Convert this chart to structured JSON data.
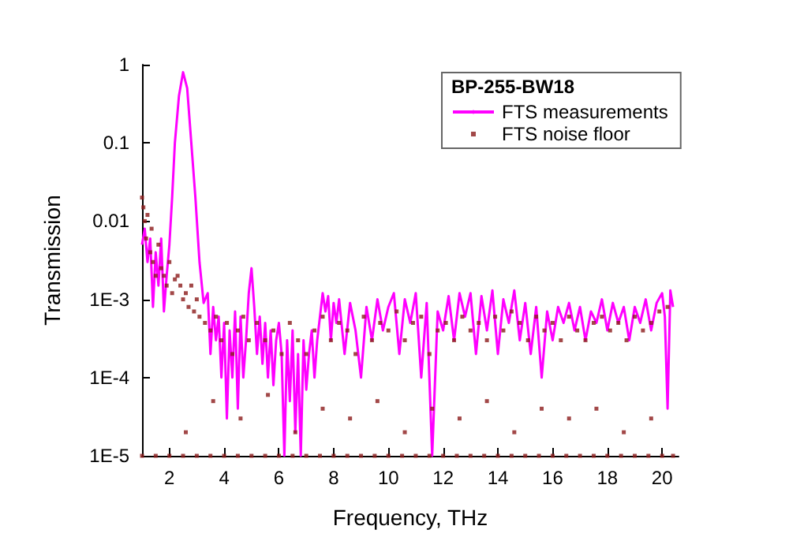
{
  "chart_data": {
    "type": "line",
    "xlabel": "Frequency, THz",
    "ylabel": "Transmission",
    "legend_title": "BP-255-BW18",
    "legend": "top right",
    "grid": false,
    "log": "y",
    "xlim": [
      1,
      20.6
    ],
    "xticks": [
      2,
      4,
      6,
      8,
      10,
      12,
      14,
      16,
      18,
      20
    ],
    "ylim": [
      1e-05,
      1
    ],
    "yticks": [
      1,
      0.1,
      0.01,
      {
        "value": 0.001,
        "label": "1E-3"
      },
      {
        "value": 0.0001,
        "label": "1E-4"
      },
      {
        "value": 1e-05,
        "label": "1E-5"
      }
    ],
    "series": [
      {
        "name": "FTS measurements",
        "color": "#ff00ff",
        "x": [
          1.0,
          1.1,
          1.2,
          1.3,
          1.4,
          1.5,
          1.6,
          1.7,
          1.8,
          1.9,
          2.0,
          2.1,
          2.2,
          2.35,
          2.5,
          2.65,
          2.8,
          2.95,
          3.1,
          3.25,
          3.4,
          3.5,
          3.6,
          3.7,
          3.8,
          3.9,
          4.0,
          4.1,
          4.2,
          4.3,
          4.4,
          4.5,
          4.6,
          4.7,
          4.8,
          4.9,
          5.0,
          5.1,
          5.2,
          5.3,
          5.4,
          5.5,
          5.6,
          5.7,
          5.8,
          5.9,
          6.0,
          6.1,
          6.2,
          6.3,
          6.4,
          6.5,
          6.6,
          6.7,
          6.8,
          6.9,
          7.0,
          7.1,
          7.2,
          7.3,
          7.4,
          7.5,
          7.6,
          7.7,
          7.8,
          7.9,
          8.0,
          8.1,
          8.2,
          8.4,
          8.6,
          8.8,
          9.0,
          9.2,
          9.4,
          9.6,
          9.8,
          10.0,
          10.2,
          10.4,
          10.6,
          10.8,
          11.0,
          11.2,
          11.4,
          11.6,
          11.8,
          12.0,
          12.2,
          12.4,
          12.6,
          12.8,
          13.0,
          13.2,
          13.4,
          13.6,
          13.8,
          14.0,
          14.2,
          14.4,
          14.6,
          14.8,
          15.0,
          15.2,
          15.4,
          15.6,
          15.8,
          16.0,
          16.2,
          16.4,
          16.6,
          16.8,
          17.0,
          17.2,
          17.4,
          17.6,
          17.8,
          18.0,
          18.2,
          18.4,
          18.6,
          18.8,
          19.0,
          19.2,
          19.4,
          19.6,
          19.8,
          20.0,
          20.1,
          20.2,
          20.3,
          20.4
        ],
        "values": [
          0.005,
          0.008,
          0.003,
          0.006,
          0.0008,
          0.004,
          0.0015,
          0.006,
          0.0007,
          0.002,
          0.005,
          0.02,
          0.1,
          0.4,
          0.8,
          0.5,
          0.1,
          0.02,
          0.003,
          0.0009,
          0.0012,
          0.0002,
          0.0008,
          0.0003,
          0.0006,
          0.0001,
          0.0005,
          3e-05,
          0.0004,
          0.0001,
          0.0007,
          4e-05,
          0.0006,
          0.0001,
          0.0003,
          0.0012,
          0.0025,
          0.0008,
          0.0002,
          0.0006,
          0.00015,
          0.0005,
          0.0001,
          0.0004,
          8e-05,
          0.0003,
          0.0005,
          0.0002,
          1e-05,
          0.0003,
          5e-05,
          0.0004,
          2e-05,
          0.0002,
          1e-05,
          0.0003,
          7e-05,
          0.0002,
          0.0004,
          0.0001,
          0.0003,
          0.0006,
          0.0012,
          0.0007,
          0.0011,
          0.0003,
          0.0009,
          0.0005,
          0.001,
          0.0002,
          0.0009,
          0.0004,
          0.0001,
          0.0008,
          0.0003,
          0.001,
          0.0004,
          0.0008,
          0.0012,
          0.0002,
          0.001,
          0.0005,
          0.0012,
          0.0001,
          0.0009,
          1e-05,
          0.0007,
          0.0004,
          0.0011,
          0.0003,
          0.0012,
          0.0006,
          0.0012,
          0.0002,
          0.0011,
          0.0004,
          0.0013,
          0.0002,
          0.001,
          0.0005,
          0.0013,
          0.0003,
          0.0009,
          0.0002,
          0.0008,
          0.0001,
          0.0007,
          0.0003,
          0.0008,
          0.0005,
          0.0009,
          0.0004,
          0.0008,
          0.0003,
          0.0007,
          0.0005,
          0.001,
          0.0004,
          0.0009,
          0.0005,
          0.0008,
          0.0003,
          0.0008,
          0.0005,
          0.001,
          0.0004,
          0.0009,
          0.0012,
          0.0006,
          4e-05,
          0.0013,
          0.0008
        ]
      },
      {
        "name": "FTS noise floor",
        "type": "scatter",
        "color": "#8b1a1a",
        "x": [
          1.0,
          1.05,
          1.1,
          1.15,
          1.2,
          1.3,
          1.35,
          1.4,
          1.5,
          1.6,
          1.7,
          1.8,
          1.9,
          2.0,
          2.1,
          2.2,
          2.3,
          2.4,
          2.5,
          2.6,
          2.7,
          2.8,
          2.9,
          3.0,
          3.1,
          3.3,
          3.5,
          3.7,
          3.9,
          4.1,
          4.3,
          4.5,
          4.7,
          4.9,
          5.2,
          5.5,
          5.8,
          6.1,
          6.4,
          6.7,
          7.0,
          7.3,
          7.6,
          7.9,
          8.2,
          8.5,
          8.8,
          9.1,
          9.4,
          9.7,
          10.0,
          10.3,
          10.6,
          10.9,
          11.2,
          11.5,
          11.8,
          12.1,
          12.4,
          12.7,
          13.0,
          13.3,
          13.6,
          13.9,
          14.2,
          14.5,
          14.8,
          15.1,
          15.4,
          15.7,
          16.0,
          16.3,
          16.6,
          16.9,
          17.2,
          17.5,
          17.8,
          18.1,
          18.4,
          18.7,
          19.0,
          19.3,
          19.6,
          19.9,
          20.2,
          2.6,
          3.6,
          4.6,
          5.6,
          6.6,
          7.6,
          8.6,
          9.6,
          10.6,
          11.6,
          12.6,
          13.6,
          14.6,
          15.6,
          16.6,
          17.6,
          18.6,
          19.6,
          1.0,
          1.5,
          2.0,
          2.5,
          3.0,
          3.5,
          4.0,
          4.5,
          5.0,
          5.5,
          6.0,
          6.5,
          7.0,
          7.5,
          8.0,
          8.5,
          9.0,
          9.5,
          10.0,
          10.5,
          11.0,
          11.5,
          12.0,
          12.5,
          13.0,
          13.5,
          14.0,
          14.5,
          15.0,
          15.5,
          16.0,
          16.5,
          17.0,
          17.5,
          18.0,
          18.5,
          19.0,
          19.5,
          20.0,
          20.4
        ],
        "values": [
          0.02,
          0.015,
          0.01,
          0.006,
          0.012,
          0.004,
          0.008,
          0.003,
          0.002,
          0.005,
          0.0025,
          0.002,
          0.0015,
          0.003,
          0.0012,
          0.0018,
          0.002,
          0.0015,
          0.001,
          0.0012,
          0.0008,
          0.0015,
          0.0007,
          0.001,
          0.0006,
          0.0005,
          0.0004,
          0.0006,
          0.0003,
          0.0005,
          0.0002,
          0.0004,
          0.0006,
          0.0003,
          0.0005,
          0.0003,
          0.0004,
          0.0002,
          0.0005,
          0.0003,
          0.0002,
          0.0004,
          0.0006,
          0.0003,
          0.0005,
          0.0004,
          0.0002,
          0.0006,
          0.0003,
          0.0005,
          0.0004,
          0.0007,
          0.0003,
          0.0005,
          0.0006,
          0.0002,
          0.0004,
          0.0005,
          0.0003,
          0.0006,
          0.0004,
          0.0005,
          0.0003,
          0.0006,
          0.0004,
          0.0007,
          0.0005,
          0.0003,
          0.0006,
          0.0004,
          0.0005,
          0.0003,
          0.0006,
          0.0004,
          0.0003,
          0.0005,
          0.0006,
          0.0004,
          0.0005,
          0.0003,
          0.0006,
          0.0004,
          0.0005,
          0.0007,
          0.0008,
          2e-05,
          5e-05,
          3e-05,
          6e-05,
          2e-05,
          4e-05,
          3e-05,
          5e-05,
          2e-05,
          4e-05,
          3e-05,
          5e-05,
          2e-05,
          4e-05,
          3e-05,
          4e-05,
          2e-05,
          3e-05,
          1e-05,
          1e-05,
          1e-05,
          1e-05,
          1e-05,
          1e-05,
          1e-05,
          1e-05,
          1e-05,
          1e-05,
          1e-05,
          1e-05,
          1e-05,
          1e-05,
          1e-05,
          1e-05,
          1e-05,
          1e-05,
          1e-05,
          1e-05,
          1e-05,
          1e-05,
          1e-05,
          1e-05,
          1e-05,
          1e-05,
          1e-05,
          1e-05,
          1e-05,
          1e-05,
          1e-05,
          1e-05,
          1e-05,
          1e-05,
          1e-05,
          1e-05,
          1e-05,
          1e-05,
          1e-05,
          1e-05
        ]
      }
    ]
  }
}
